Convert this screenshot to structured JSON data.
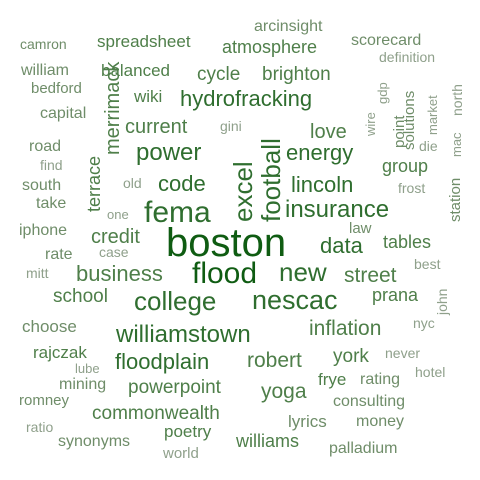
{
  "colors": {
    "background": "#ffffff",
    "tier1": "#0f5c12",
    "tier2": "#2f6e2f",
    "tier3": "#4f7f4a",
    "tier4": "#6f8d69",
    "tier5": "#8fa08b"
  },
  "words": [
    {
      "text": "boston",
      "tier": 1
    },
    {
      "text": "flood",
      "tier": 1
    },
    {
      "text": "fema",
      "tier": 2
    },
    {
      "text": "excel",
      "tier": 2
    },
    {
      "text": "football",
      "tier": 2
    },
    {
      "text": "nescac",
      "tier": 2
    },
    {
      "text": "college",
      "tier": 2
    },
    {
      "text": "insurance",
      "tier": 2
    },
    {
      "text": "williamstown",
      "tier": 2
    },
    {
      "text": "new",
      "tier": 2
    },
    {
      "text": "data",
      "tier": 2
    },
    {
      "text": "power",
      "tier": 2
    },
    {
      "text": "hydrofracking",
      "tier": 2
    },
    {
      "text": "lincoln",
      "tier": 2
    },
    {
      "text": "code",
      "tier": 2
    },
    {
      "text": "energy",
      "tier": 2
    },
    {
      "text": "floodplain",
      "tier": 2
    },
    {
      "text": "business",
      "tier": 3
    },
    {
      "text": "robert",
      "tier": 3
    },
    {
      "text": "inflation",
      "tier": 3
    },
    {
      "text": "street",
      "tier": 3
    },
    {
      "text": "credit",
      "tier": 3
    },
    {
      "text": "current",
      "tier": 3
    },
    {
      "text": "merrimack",
      "tier": 3
    },
    {
      "text": "school",
      "tier": 3
    },
    {
      "text": "tables",
      "tier": 3
    },
    {
      "text": "prana",
      "tier": 3
    },
    {
      "text": "york",
      "tier": 3
    },
    {
      "text": "love",
      "tier": 3
    },
    {
      "text": "brighton",
      "tier": 3
    },
    {
      "text": "cycle",
      "tier": 3
    },
    {
      "text": "balanced",
      "tier": 3
    },
    {
      "text": "atmosphere",
      "tier": 3
    },
    {
      "text": "spreadsheet",
      "tier": 3
    },
    {
      "text": "powerpoint",
      "tier": 3
    },
    {
      "text": "commonwealth",
      "tier": 3
    },
    {
      "text": "yoga",
      "tier": 3
    },
    {
      "text": "williams",
      "tier": 3
    },
    {
      "text": "poetry",
      "tier": 3
    },
    {
      "text": "terrace",
      "tier": 3
    },
    {
      "text": "wiki",
      "tier": 3
    },
    {
      "text": "group",
      "tier": 3
    },
    {
      "text": "frye",
      "tier": 3
    },
    {
      "text": "rajczak",
      "tier": 3
    },
    {
      "text": "choose",
      "tier": 4
    },
    {
      "text": "lyrics",
      "tier": 4
    },
    {
      "text": "synonyms",
      "tier": 4
    },
    {
      "text": "take",
      "tier": 4
    },
    {
      "text": "south",
      "tier": 4
    },
    {
      "text": "rate",
      "tier": 4
    },
    {
      "text": "iphone",
      "tier": 4
    },
    {
      "text": "road",
      "tier": 4
    },
    {
      "text": "capital",
      "tier": 4
    },
    {
      "text": "william",
      "tier": 4
    },
    {
      "text": "camron",
      "tier": 4
    },
    {
      "text": "bedford",
      "tier": 4
    },
    {
      "text": "scorecard",
      "tier": 4
    },
    {
      "text": "arcinsight",
      "tier": 4
    },
    {
      "text": "solutions",
      "tier": 4
    },
    {
      "text": "point",
      "tier": 4
    },
    {
      "text": "rating",
      "tier": 4
    },
    {
      "text": "consulting",
      "tier": 4
    },
    {
      "text": "money",
      "tier": 4
    },
    {
      "text": "palladium",
      "tier": 4
    },
    {
      "text": "mining",
      "tier": 4
    },
    {
      "text": "romney",
      "tier": 4
    },
    {
      "text": "station",
      "tier": 4
    },
    {
      "text": "law",
      "tier": 4
    },
    {
      "text": "find",
      "tier": 5
    },
    {
      "text": "old",
      "tier": 5
    },
    {
      "text": "one",
      "tier": 5
    },
    {
      "text": "case",
      "tier": 5
    },
    {
      "text": "mitt",
      "tier": 5
    },
    {
      "text": "gini",
      "tier": 5
    },
    {
      "text": "wire",
      "tier": 5
    },
    {
      "text": "gdp",
      "tier": 5
    },
    {
      "text": "die",
      "tier": 5
    },
    {
      "text": "frost",
      "tier": 5
    },
    {
      "text": "market",
      "tier": 5
    },
    {
      "text": "mac",
      "tier": 5
    },
    {
      "text": "north",
      "tier": 5
    },
    {
      "text": "definition",
      "tier": 5
    },
    {
      "text": "best",
      "tier": 5
    },
    {
      "text": "john",
      "tier": 5
    },
    {
      "text": "nyc",
      "tier": 5
    },
    {
      "text": "never",
      "tier": 5
    },
    {
      "text": "hotel",
      "tier": 5
    },
    {
      "text": "lube",
      "tier": 5
    },
    {
      "text": "ratio",
      "tier": 5
    },
    {
      "text": "world",
      "tier": 5
    }
  ]
}
